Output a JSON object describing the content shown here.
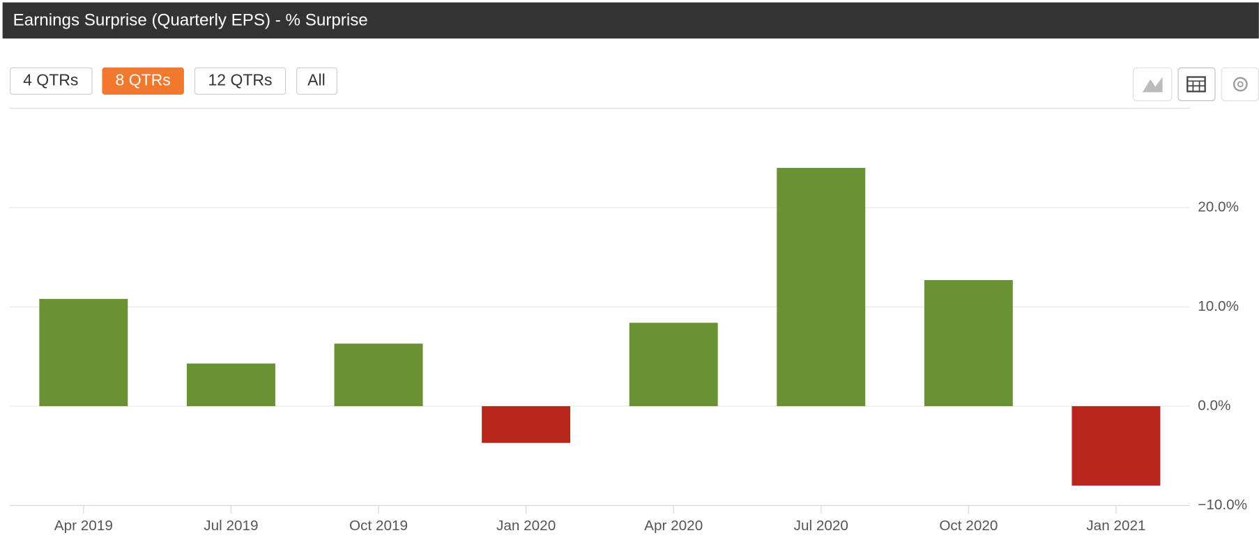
{
  "header": {
    "title": "Earnings Surprise (Quarterly EPS) - % Surprise"
  },
  "buttons": [
    "4 QTRs",
    "8 QTRs",
    "12 QTRs",
    "All"
  ],
  "chart_data": {
    "type": "bar",
    "categories": [
      "Apr 2019",
      "Jul 2019",
      "Oct 2019",
      "Jan 2020",
      "Apr 2020",
      "Jul 2020",
      "Oct 2020",
      "Jan 2021"
    ],
    "values": [
      10.8,
      4.3,
      6.3,
      -3.7,
      8.4,
      24.0,
      12.7,
      -8.0
    ],
    "positive_color": "#6a9134",
    "negative_color": "#b9261e",
    "ylim": [
      -10,
      30
    ],
    "yticks": [
      {
        "value": -10,
        "label": "−10.0%"
      },
      {
        "value": 0,
        "label": "0.0%"
      },
      {
        "value": 10,
        "label": "10.0%"
      },
      {
        "value": 20,
        "label": "20.0%"
      }
    ],
    "grid": true
  }
}
